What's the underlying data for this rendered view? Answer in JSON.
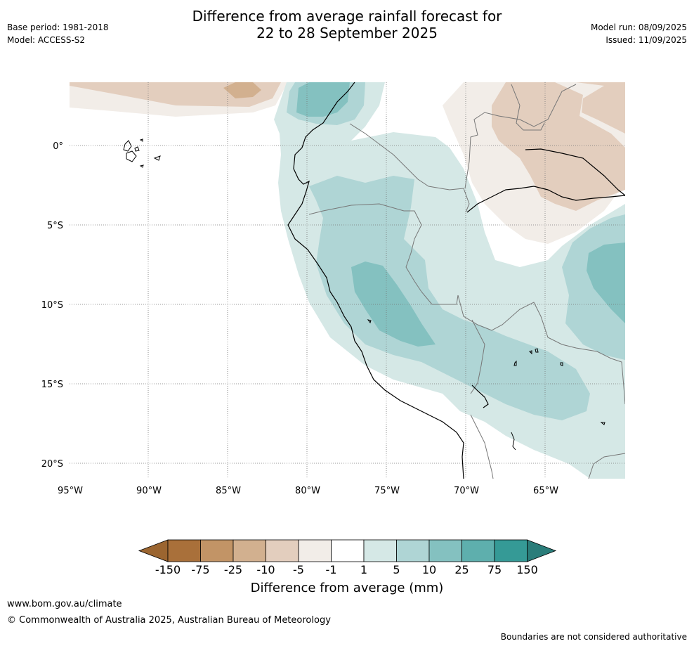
{
  "header": {
    "base_period": "Base period: 1981-2018",
    "model": "Model: ACCESS-S2",
    "title_line1": "Difference from average rainfall forecast for",
    "title_line2": "22 to 28 September 2025",
    "model_run": "Model run: 08/09/2025",
    "issued": "Issued: 11/09/2025"
  },
  "map": {
    "lon_labels": [
      "95°W",
      "90°W",
      "85°W",
      "80°W",
      "75°W",
      "70°W",
      "65°W"
    ],
    "lat_labels": [
      "0°",
      "5°S",
      "10°S",
      "15°S",
      "20°S"
    ]
  },
  "colorbar": {
    "title": "Difference from average (mm)",
    "ticks": [
      "-150",
      "-75",
      "-25",
      "-10",
      "-5",
      "-1",
      "1",
      "5",
      "10",
      "25",
      "75",
      "150"
    ],
    "colors": [
      "#a9703a",
      "#c29466",
      "#d2b08f",
      "#e3cebe",
      "#f2ede8",
      "#ffffff",
      "#d5e8e6",
      "#afd5d5",
      "#84c1c0",
      "#5eafad",
      "#359a96",
      "#2a7d7a"
    ]
  },
  "footer": {
    "url": "www.bom.gov.au/climate",
    "copyright": "© Commonwealth of Australia 2025, Australian Bureau of Meteorology",
    "note": "Boundaries are not considered authoritative"
  }
}
